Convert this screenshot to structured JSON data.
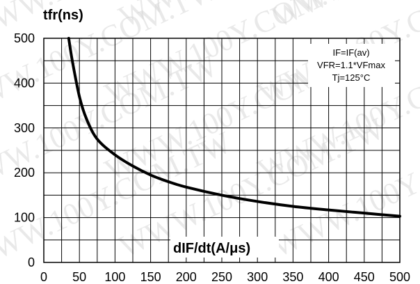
{
  "watermark": "WWW.100Y.COM.TW",
  "chart_data": {
    "type": "line",
    "ylabel": "tfr(ns)",
    "xlabel": "dIF/dt(A/μs)",
    "xlim": [
      0,
      500
    ],
    "ylim": [
      0,
      500
    ],
    "x_ticks": [
      0,
      50,
      100,
      150,
      200,
      250,
      300,
      350,
      400,
      450,
      500
    ],
    "y_ticks": [
      0,
      100,
      200,
      300,
      400,
      500
    ],
    "grid": true,
    "annotations": [
      "IF=IF(av)",
      "VFR=1.1*VFmax",
      "Tj=125°C"
    ],
    "series": [
      {
        "color": "#000000",
        "x": [
          35,
          40,
          50,
          60,
          75,
          100,
          125,
          150,
          175,
          200,
          250,
          300,
          350,
          400,
          450,
          500
        ],
        "y": [
          500,
          450,
          370,
          320,
          275,
          240,
          215,
          195,
          180,
          168,
          150,
          136,
          125,
          117,
          110,
          103
        ]
      }
    ]
  }
}
